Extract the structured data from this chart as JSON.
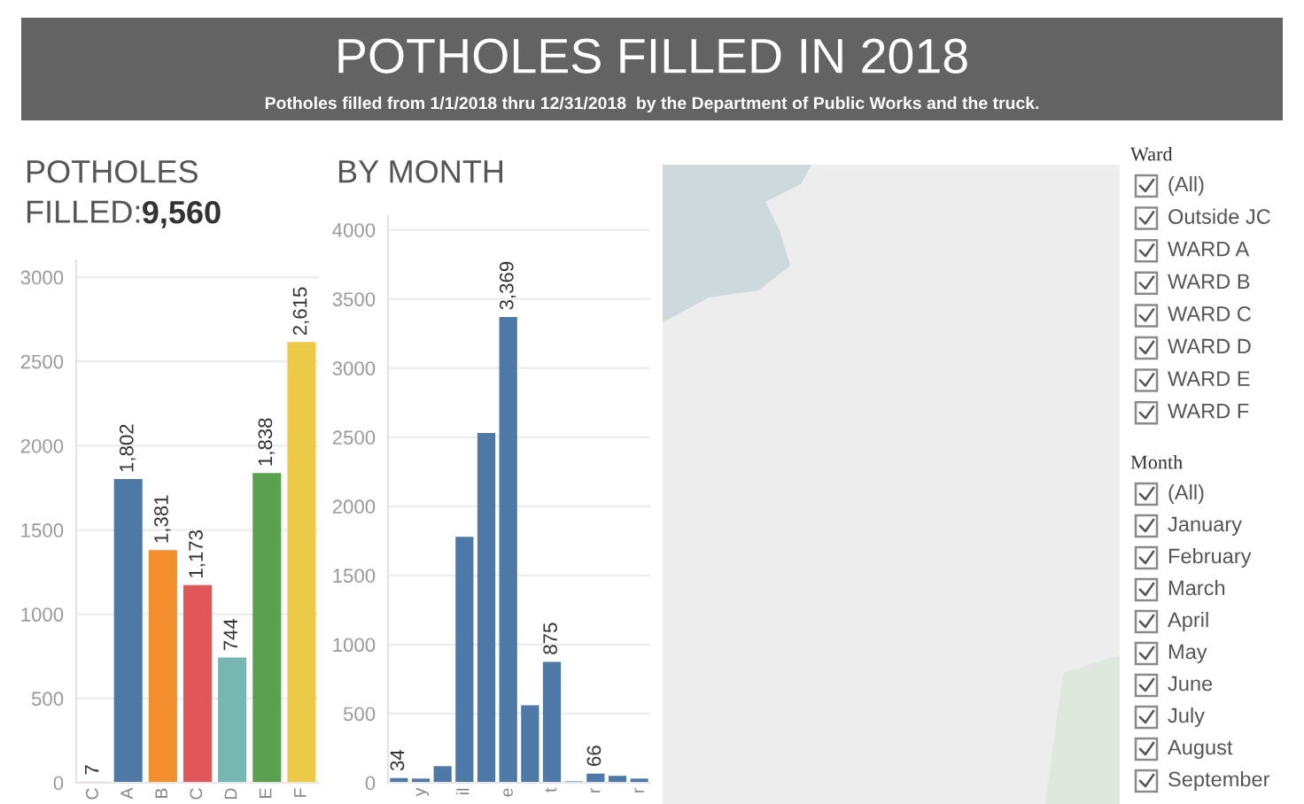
{
  "chart_data": [
    {
      "type": "other",
      "title": "POTHOLES FILLED IN 2018",
      "subtitle": "Potholes filled from 1/1/2018 thru 12/31/2018  by the Department of Public Works and the truck."
    },
    {
      "type": "bar",
      "title": "POTHOLES\nFILLED:",
      "subtitle": "9,560",
      "categories": [
        "C",
        "A",
        "B",
        "C",
        "D",
        "E",
        "F"
      ],
      "values": [
        7,
        1802,
        1381,
        1173,
        744,
        1838,
        2615
      ],
      "colors": [
        "#ff9d9a",
        "#4e79a7",
        "#f28e2b",
        "#e15759",
        "#76b7b2",
        "#59a14f",
        "#edc948"
      ],
      "value_labels": [
        "7",
        "1,802",
        "1,381",
        "1,173",
        "744",
        "1,838",
        "2,615"
      ],
      "ylim": [
        0,
        3100
      ],
      "yticks": [
        0,
        500,
        1000,
        1500,
        2000,
        2500,
        3000
      ],
      "grid": "y"
    },
    {
      "type": "bar",
      "title": "BY MONTH",
      "categories": [
        null,
        "y",
        null,
        "il",
        null,
        "e",
        null,
        "t",
        null,
        "r",
        null,
        "r"
      ],
      "values": [
        34,
        30,
        120,
        1780,
        2530,
        3369,
        560,
        875,
        10,
        66,
        50,
        30
      ],
      "color": "#4e79a7",
      "value_labels": [
        "34",
        null,
        null,
        null,
        null,
        "3,369",
        null,
        "875",
        null,
        "66",
        null,
        null
      ],
      "ylim": [
        0,
        4100
      ],
      "yticks": [
        0,
        500,
        1000,
        1500,
        2000,
        2500,
        3000,
        3500,
        4000
      ],
      "grid": "y"
    },
    {
      "type": "other",
      "title": "Ward",
      "annotations": [
        "(All)",
        "Outside JC",
        "WARD A",
        "WARD B",
        "WARD C",
        "WARD D",
        "WARD E",
        "WARD F"
      ]
    },
    {
      "type": "other",
      "title": "Month",
      "annotations": [
        "(All)",
        "January",
        "February",
        "March",
        "April",
        "May",
        "June",
        "July",
        "August",
        "September"
      ]
    }
  ]
}
